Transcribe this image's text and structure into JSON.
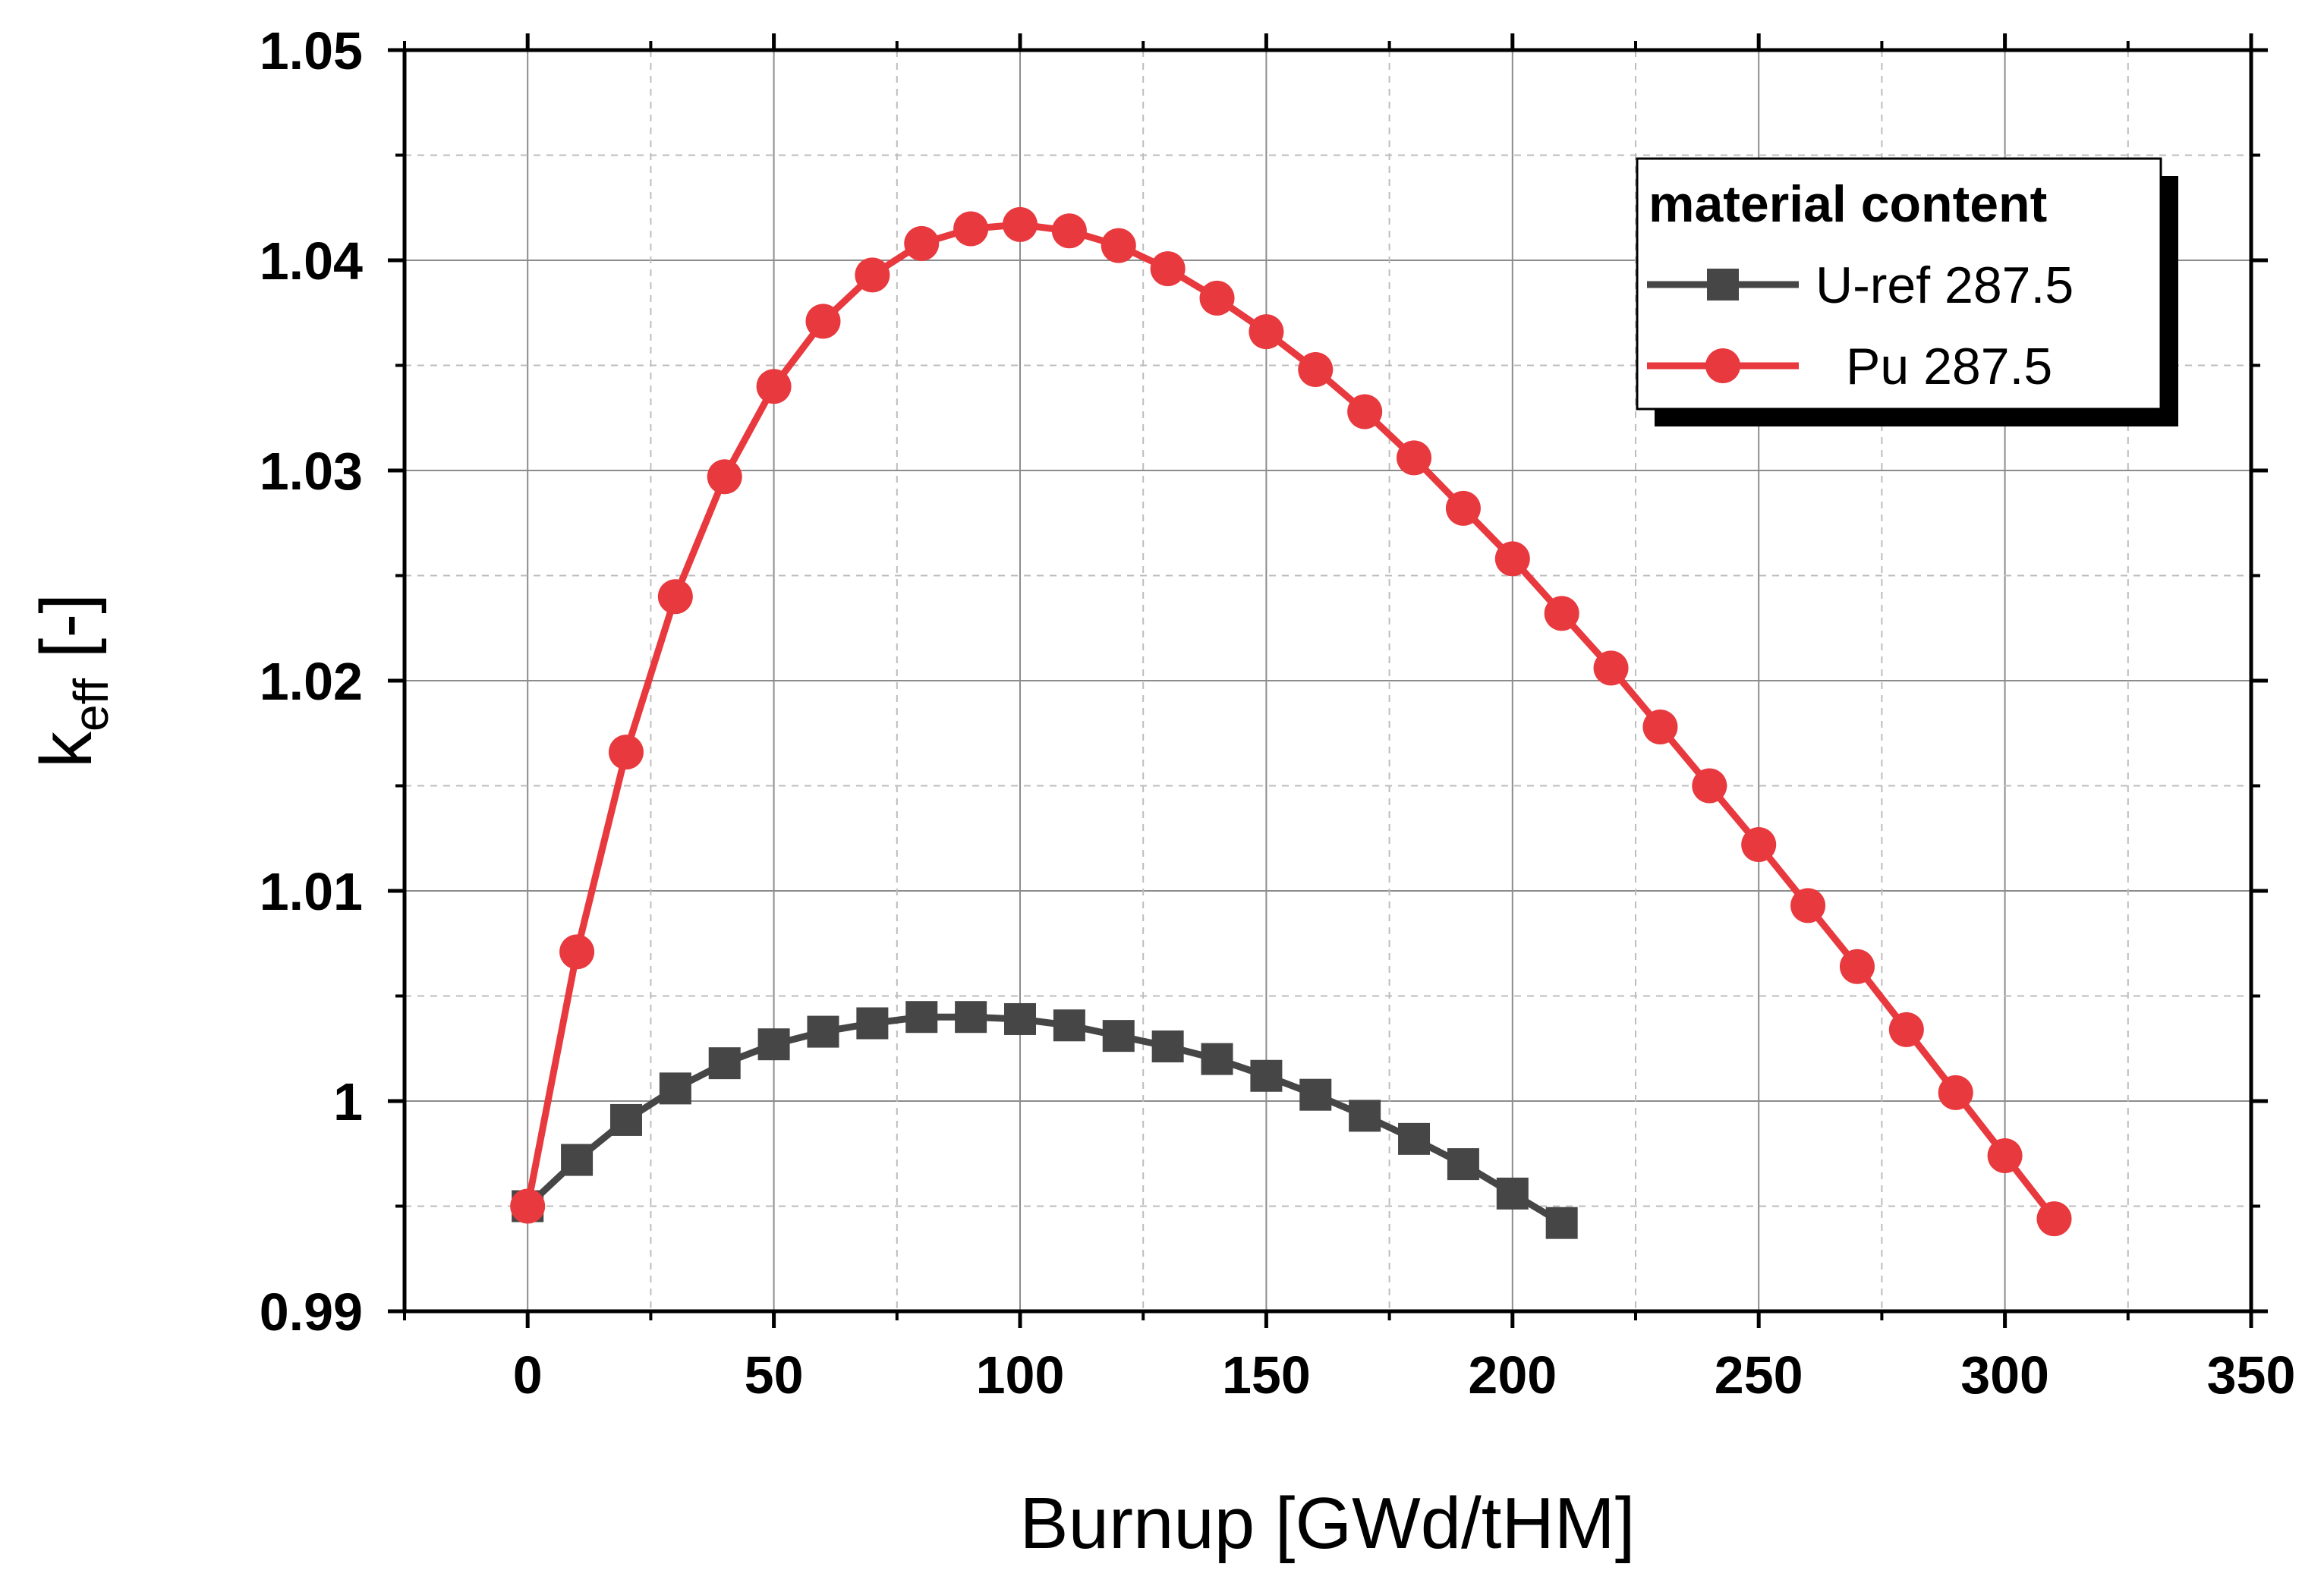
{
  "chart_data": {
    "type": "line",
    "title": "",
    "xlabel": "Burnup [GWd/tHM]",
    "ylabel": {
      "main": "k",
      "sub": "eff",
      "suffix": " [-]"
    },
    "xlim": [
      -25,
      350
    ],
    "ylim": [
      0.99,
      1.05
    ],
    "x_ticks": [
      0,
      50,
      100,
      150,
      200,
      250,
      300,
      350
    ],
    "x_tick_labels": [
      "0",
      "50",
      "100",
      "150",
      "200",
      "250",
      "300",
      "350"
    ],
    "y_ticks": [
      0.99,
      1.0,
      1.01,
      1.02,
      1.03,
      1.04,
      1.05
    ],
    "y_tick_labels": [
      "0.99",
      "1",
      "1.01",
      "1.02",
      "1.03",
      "1.04",
      "1.05"
    ],
    "grid": true,
    "legend": {
      "title": "material content",
      "position": "top-right"
    },
    "series": [
      {
        "name": "U-ref 287.5",
        "marker": "square",
        "color": "#464646",
        "x": [
          0,
          10,
          20,
          30,
          40,
          50,
          60,
          70,
          80,
          90,
          100,
          110,
          120,
          130,
          140,
          150,
          160,
          170,
          180,
          190,
          200,
          210
        ],
        "y": [
          0.995,
          0.9972,
          0.9991,
          1.0006,
          1.0018,
          1.0027,
          1.0033,
          1.0037,
          1.004,
          1.004,
          1.0039,
          1.0036,
          1.0031,
          1.0026,
          1.002,
          1.0012,
          1.0003,
          0.9993,
          0.9982,
          0.997,
          0.9956,
          0.9942
        ]
      },
      {
        "name": "Pu 287.5",
        "marker": "circle",
        "color": "#e8393e",
        "x": [
          0,
          10,
          20,
          30,
          40,
          50,
          60,
          70,
          80,
          90,
          100,
          110,
          120,
          130,
          140,
          150,
          160,
          170,
          180,
          190,
          200,
          210,
          220,
          230,
          240,
          250,
          260,
          270,
          280,
          290,
          300,
          310
        ],
        "y": [
          0.995,
          1.0071,
          1.0166,
          1.024,
          1.0297,
          1.034,
          1.0371,
          1.0393,
          1.0408,
          1.0415,
          1.0417,
          1.0414,
          1.0407,
          1.0396,
          1.0382,
          1.0366,
          1.0348,
          1.0328,
          1.0306,
          1.0282,
          1.0258,
          1.0232,
          1.0206,
          1.0178,
          1.015,
          1.0122,
          1.0093,
          1.0064,
          1.0034,
          1.0004,
          0.9974,
          0.9944
        ]
      }
    ]
  }
}
